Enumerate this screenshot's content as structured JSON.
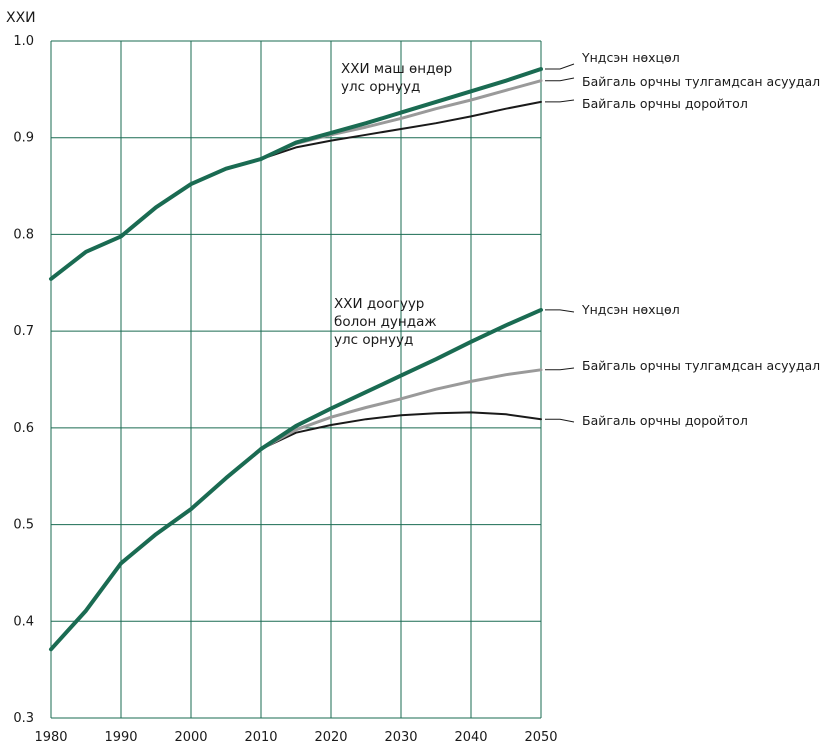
{
  "chart_data": {
    "type": "line",
    "title": "",
    "xlabel": "",
    "ylabel": "ХХИ",
    "xlim": [
      1980,
      2050
    ],
    "ylim": [
      0.3,
      1.0
    ],
    "x_ticks": [
      1980,
      1990,
      2000,
      2010,
      2020,
      2030,
      2040,
      2050
    ],
    "y_ticks": [
      0.3,
      0.4,
      0.5,
      0.6,
      0.7,
      0.8,
      0.9,
      1.0
    ],
    "grid": true,
    "colors": {
      "base": "#1a6b52",
      "challenge": "#9a9a9a",
      "disaster": "#1a1a1a",
      "grid": "#1a6b52"
    },
    "groups": [
      {
        "label_lines": [
          "ХХИ маш өндөр",
          "улс орнууд"
        ],
        "historical": {
          "x": [
            1980,
            1985,
            1990,
            1995,
            2000,
            2005,
            2010
          ],
          "y": [
            0.754,
            0.782,
            0.798,
            0.828,
            0.852,
            0.868,
            0.878
          ]
        },
        "series": [
          {
            "name": "Үндсэн нөхцөл",
            "style": "base",
            "x": [
              2010,
              2015,
              2020,
              2025,
              2030,
              2035,
              2040,
              2045,
              2050
            ],
            "y": [
              0.878,
              0.895,
              0.905,
              0.915,
              0.926,
              0.937,
              0.948,
              0.959,
              0.971
            ]
          },
          {
            "name": "Байгаль орчны тулгамдсан асуудал",
            "style": "challenge",
            "x": [
              2010,
              2015,
              2020,
              2025,
              2030,
              2035,
              2040,
              2045,
              2050
            ],
            "y": [
              0.878,
              0.894,
              0.903,
              0.911,
              0.92,
              0.93,
              0.939,
              0.949,
              0.959
            ]
          },
          {
            "name": "Байгаль орчны доройтол",
            "style": "disaster",
            "x": [
              2010,
              2015,
              2020,
              2025,
              2030,
              2035,
              2040,
              2045,
              2050
            ],
            "y": [
              0.878,
              0.89,
              0.897,
              0.903,
              0.909,
              0.915,
              0.922,
              0.93,
              0.937
            ]
          }
        ]
      },
      {
        "label_lines": [
          "ХХИ доогуур",
          "болон дундаж",
          "улс орнууд"
        ],
        "historical": {
          "x": [
            1980,
            1985,
            1990,
            1995,
            2000,
            2005,
            2010
          ],
          "y": [
            0.371,
            0.411,
            0.46,
            0.49,
            0.516,
            0.548,
            0.578
          ]
        },
        "series": [
          {
            "name": "Үндсэн нөхцөл",
            "style": "base",
            "x": [
              2010,
              2015,
              2020,
              2025,
              2030,
              2035,
              2040,
              2045,
              2050
            ],
            "y": [
              0.578,
              0.602,
              0.62,
              0.637,
              0.654,
              0.671,
              0.689,
              0.706,
              0.722
            ]
          },
          {
            "name": "Байгаль орчны тулгамдсан асуудал",
            "style": "challenge",
            "x": [
              2010,
              2015,
              2020,
              2025,
              2030,
              2035,
              2040,
              2045,
              2050
            ],
            "y": [
              0.578,
              0.598,
              0.611,
              0.621,
              0.63,
              0.64,
              0.648,
              0.655,
              0.66
            ]
          },
          {
            "name": "Байгаль орчны доройтол",
            "style": "disaster",
            "x": [
              2010,
              2015,
              2020,
              2025,
              2030,
              2035,
              2040,
              2045,
              2050
            ],
            "y": [
              0.578,
              0.595,
              0.603,
              0.609,
              0.613,
              0.615,
              0.616,
              0.614,
              0.609
            ]
          }
        ]
      }
    ]
  }
}
